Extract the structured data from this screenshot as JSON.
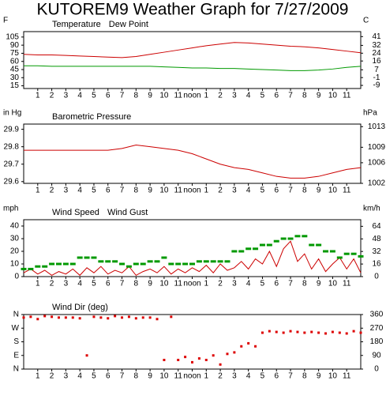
{
  "title": "KUTOREM9 Weather Graph for 7/27/2009",
  "chart_data": [
    {
      "type": "line",
      "ylabel": "F",
      "y2label": "C",
      "x": [
        0,
        1,
        2,
        3,
        4,
        5,
        6,
        7,
        8,
        9,
        10,
        11,
        12,
        13,
        14,
        15,
        16,
        17,
        18,
        19,
        20,
        21,
        22,
        23,
        24
      ],
      "xlim": [
        0,
        24
      ],
      "xticks": [
        1,
        2,
        3,
        4,
        5,
        6,
        7,
        8,
        9,
        10,
        11,
        {
          "value": 12,
          "label": "noon"
        },
        {
          "value": 13,
          "label": "1"
        },
        {
          "value": 14,
          "label": "2"
        },
        {
          "value": 15,
          "label": "3"
        },
        {
          "value": 16,
          "label": "4"
        },
        {
          "value": 17,
          "label": "5"
        },
        {
          "value": 18,
          "label": "6"
        },
        {
          "value": 19,
          "label": "7"
        },
        {
          "value": 20,
          "label": "8"
        },
        {
          "value": 21,
          "label": "9"
        },
        {
          "value": 22,
          "label": "10"
        },
        {
          "value": 23,
          "label": "11"
        }
      ],
      "ylim": [
        10,
        115
      ],
      "yticks": [
        105,
        90,
        75,
        60,
        45,
        30,
        15
      ],
      "y2lim": [
        -12.2,
        46.1
      ],
      "y2ticks": [
        41,
        32,
        24,
        16,
        7,
        -1,
        -9
      ],
      "series": [
        {
          "name": "Temperature",
          "color": "#cc0000",
          "values": [
            73,
            72,
            72,
            71,
            70,
            69,
            68,
            67,
            69,
            73,
            77,
            81,
            85,
            89,
            92,
            95,
            94,
            92,
            90,
            88,
            87,
            85,
            82,
            79,
            76
          ]
        },
        {
          "name": "Dew Point",
          "color": "#009900",
          "values": [
            52,
            52,
            51,
            51,
            51,
            51,
            51,
            51,
            51,
            51,
            50,
            49,
            48,
            48,
            47,
            47,
            46,
            45,
            44,
            43,
            43,
            44,
            46,
            49,
            51
          ]
        }
      ]
    },
    {
      "type": "line",
      "ylabel": "in Hg",
      "y2label": "hPa",
      "x": [
        0,
        1,
        2,
        3,
        4,
        5,
        6,
        7,
        8,
        9,
        10,
        11,
        12,
        13,
        14,
        15,
        16,
        17,
        18,
        19,
        20,
        21,
        22,
        23,
        24
      ],
      "xlim": [
        0,
        24
      ],
      "xticks": [
        1,
        2,
        3,
        4,
        5,
        6,
        7,
        8,
        9,
        10,
        11,
        {
          "value": 12,
          "label": "noon"
        },
        {
          "value": 13,
          "label": "1"
        },
        {
          "value": 14,
          "label": "2"
        },
        {
          "value": 15,
          "label": "3"
        },
        {
          "value": 16,
          "label": "4"
        },
        {
          "value": 17,
          "label": "5"
        },
        {
          "value": 18,
          "label": "6"
        },
        {
          "value": 19,
          "label": "7"
        },
        {
          "value": 20,
          "label": "8"
        },
        {
          "value": 21,
          "label": "9"
        },
        {
          "value": 22,
          "label": "10"
        },
        {
          "value": 23,
          "label": "11"
        }
      ],
      "ylim": [
        29.59,
        29.93
      ],
      "yticks": [
        29.9,
        29.8,
        29.7,
        29.6
      ],
      "y2lim": [
        1002.0,
        1013.5
      ],
      "y2ticks": [
        1013,
        1009,
        1006,
        1002
      ],
      "series": [
        {
          "name": "Barometric Pressure",
          "color": "#cc0000",
          "values": [
            29.78,
            29.78,
            29.78,
            29.78,
            29.78,
            29.78,
            29.78,
            29.79,
            29.81,
            29.8,
            29.79,
            29.78,
            29.76,
            29.73,
            29.7,
            29.68,
            29.67,
            29.65,
            29.63,
            29.62,
            29.62,
            29.63,
            29.65,
            29.67,
            29.68
          ]
        }
      ]
    },
    {
      "type": "line",
      "ylabel": "mph",
      "y2label": "km/h",
      "x": [
        0,
        0.5,
        1,
        1.5,
        2,
        2.5,
        3,
        3.5,
        4,
        4.5,
        5,
        5.5,
        6,
        6.5,
        7,
        7.5,
        8,
        8.5,
        9,
        9.5,
        10,
        10.5,
        11,
        11.5,
        12,
        12.5,
        13,
        13.5,
        14,
        14.5,
        15,
        15.5,
        16,
        16.5,
        17,
        17.5,
        18,
        18.5,
        19,
        19.5,
        20,
        20.5,
        21,
        21.5,
        22,
        22.5,
        23,
        23.5,
        24
      ],
      "xlim": [
        0,
        24
      ],
      "xticks": [
        1,
        2,
        3,
        4,
        5,
        6,
        7,
        8,
        9,
        10,
        11,
        {
          "value": 12,
          "label": "noon"
        },
        {
          "value": 13,
          "label": "1"
        },
        {
          "value": 14,
          "label": "2"
        },
        {
          "value": 15,
          "label": "3"
        },
        {
          "value": 16,
          "label": "4"
        },
        {
          "value": 17,
          "label": "5"
        },
        {
          "value": 18,
          "label": "6"
        },
        {
          "value": 19,
          "label": "7"
        },
        {
          "value": 20,
          "label": "8"
        },
        {
          "value": 21,
          "label": "9"
        },
        {
          "value": 22,
          "label": "10"
        },
        {
          "value": 23,
          "label": "11"
        }
      ],
      "ylim": [
        0,
        45
      ],
      "yticks": [
        40,
        30,
        20,
        10,
        0
      ],
      "y2lim": [
        0,
        72.4
      ],
      "y2ticks": [
        64,
        48,
        32,
        16,
        0
      ],
      "series": [
        {
          "name": "Wind Speed",
          "color": "#cc0000",
          "marker": "line",
          "values": [
            3,
            6,
            2,
            5,
            1,
            4,
            2,
            6,
            1,
            7,
            3,
            8,
            2,
            5,
            3,
            8,
            1,
            4,
            6,
            3,
            8,
            2,
            6,
            3,
            7,
            4,
            9,
            3,
            10,
            5,
            7,
            12,
            6,
            14,
            10,
            20,
            8,
            22,
            28,
            12,
            18,
            6,
            14,
            4,
            10,
            15,
            6,
            14,
            3
          ]
        },
        {
          "name": "Wind Gust",
          "color": "#009900",
          "marker": "dash",
          "values": [
            6,
            6,
            8,
            8,
            10,
            10,
            10,
            10,
            15,
            15,
            15,
            12,
            12,
            12,
            10,
            8,
            10,
            10,
            12,
            12,
            15,
            10,
            10,
            10,
            10,
            12,
            12,
            12,
            12,
            12,
            20,
            20,
            22,
            22,
            25,
            25,
            28,
            30,
            30,
            32,
            32,
            25,
            25,
            20,
            20,
            15,
            18,
            18,
            16
          ]
        }
      ]
    },
    {
      "type": "scatter",
      "ytick_color": "#cc0000",
      "x": [
        0,
        0.5,
        1,
        1.5,
        2,
        2.5,
        3,
        3.5,
        4,
        4.5,
        5,
        5.5,
        6,
        6.5,
        7,
        7.5,
        8,
        8.5,
        9,
        9.5,
        10,
        10.5,
        11,
        11.5,
        12,
        12.5,
        13,
        13.5,
        14,
        14.5,
        15,
        15.5,
        16,
        16.5,
        17,
        17.5,
        18,
        18.5,
        19,
        19.5,
        20,
        20.5,
        21,
        21.5,
        22,
        22.5,
        23,
        23.5,
        24
      ],
      "xlim": [
        0,
        24
      ],
      "xticks": [
        1,
        2,
        3,
        4,
        5,
        6,
        7,
        8,
        9,
        10,
        11,
        {
          "value": 12,
          "label": "noon"
        },
        {
          "value": 13,
          "label": "1"
        },
        {
          "value": 14,
          "label": "2"
        },
        {
          "value": 15,
          "label": "3"
        },
        {
          "value": 16,
          "label": "4"
        },
        {
          "value": 17,
          "label": "5"
        },
        {
          "value": 18,
          "label": "6"
        },
        {
          "value": 19,
          "label": "7"
        },
        {
          "value": 20,
          "label": "8"
        },
        {
          "value": 21,
          "label": "9"
        },
        {
          "value": 22,
          "label": "10"
        },
        {
          "value": 23,
          "label": "11"
        }
      ],
      "ylim": [
        0,
        360
      ],
      "yticks": [
        {
          "value": 360,
          "label": "N"
        },
        {
          "value": 270,
          "label": "W"
        },
        {
          "value": 180,
          "label": "S"
        },
        {
          "value": 90,
          "label": "E"
        },
        {
          "value": 0,
          "label": "N"
        }
      ],
      "y2lim": [
        0,
        360
      ],
      "y2ticks": [
        360,
        270,
        180,
        90,
        0
      ],
      "series": [
        {
          "name": "Wind Dir (deg)",
          "color": "#dd0000",
          "values": [
            340,
            345,
            330,
            350,
            345,
            340,
            340,
            340,
            335,
            90,
            345,
            340,
            335,
            350,
            340,
            345,
            335,
            340,
            340,
            330,
            60,
            345,
            60,
            80,
            45,
            70,
            60,
            90,
            30,
            100,
            110,
            150,
            170,
            150,
            240,
            250,
            245,
            240,
            250,
            245,
            240,
            245,
            240,
            235,
            245,
            240,
            235,
            250,
            240
          ]
        }
      ]
    }
  ]
}
